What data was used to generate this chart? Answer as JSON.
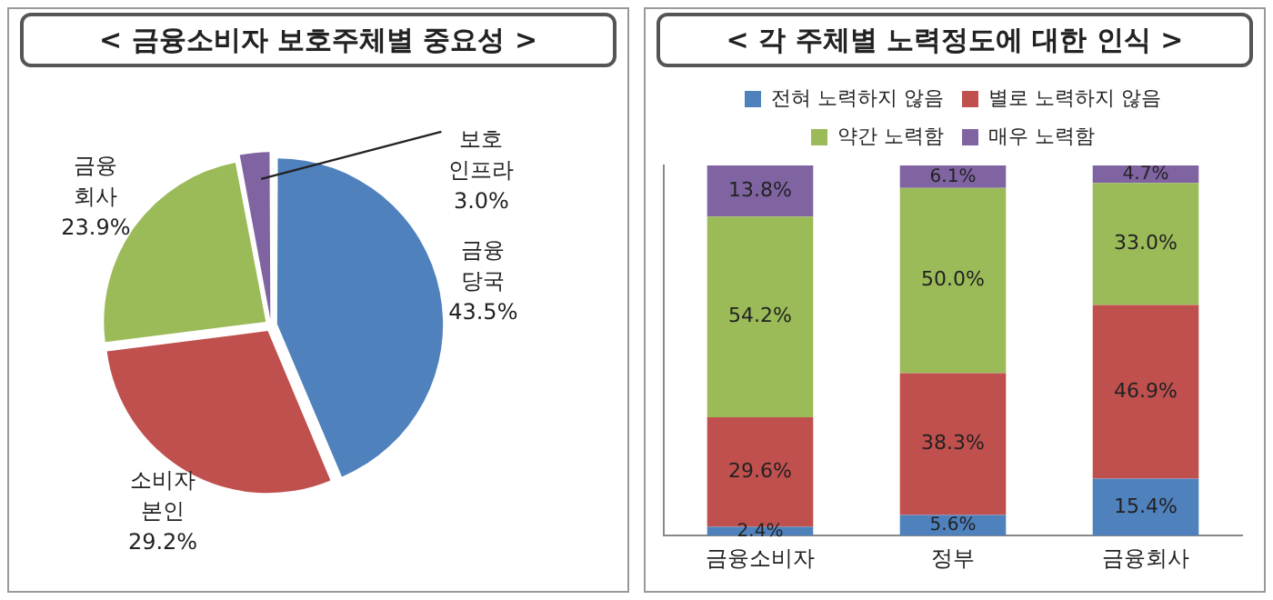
{
  "chart_data": [
    {
      "type": "pie",
      "title": "< 금융소비자 보호주체별 중요성 >",
      "categories": [
        "금융 당국",
        "소비자 본인",
        "금융 회사",
        "보호 인프라"
      ],
      "values": [
        43.5,
        29.2,
        23.9,
        3.0
      ],
      "colors": [
        "#4f81bd",
        "#c0504d",
        "#9bbb59",
        "#8064a2"
      ],
      "value_labels": [
        "43.5%",
        "29.2%",
        "23.9%",
        "3.0%"
      ],
      "legend": false
    },
    {
      "type": "bar",
      "title": "< 각 주체별 노력정도에 대한 인식 >",
      "categories": [
        "금융소비자",
        "정부",
        "금융회사"
      ],
      "stacked": true,
      "ylim": [
        0,
        100
      ],
      "tick_labels": "x",
      "grid": false,
      "legend": "top",
      "series": [
        {
          "name": "전혀 노력하지 않음",
          "color": "#4f81bd",
          "values": [
            2.4,
            5.6,
            15.4
          ],
          "value_labels": [
            "2.4%",
            "5.6%",
            "15.4%"
          ]
        },
        {
          "name": "별로 노력하지 않음",
          "color": "#c0504d",
          "values": [
            29.6,
            38.3,
            46.9
          ],
          "value_labels": [
            "29.6%",
            "38.3%",
            "46.9%"
          ]
        },
        {
          "name": "약간 노력함",
          "color": "#9bbb59",
          "values": [
            54.2,
            50.0,
            33.0
          ],
          "value_labels": [
            "54.2%",
            "50.0%",
            "33.0%"
          ]
        },
        {
          "name": "매우 노력함",
          "color": "#8064a2",
          "values": [
            13.8,
            6.1,
            4.7
          ],
          "value_labels": [
            "13.8%",
            "6.1%",
            "4.7%"
          ]
        }
      ]
    }
  ]
}
